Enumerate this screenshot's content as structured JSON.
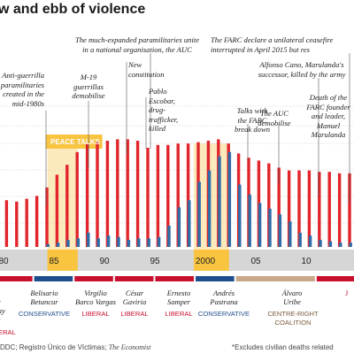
{
  "title": "w and ebb of violence",
  "colors": {
    "red": "#e1252b",
    "blue": "#2f6da8",
    "highlight": "#f9c440",
    "band": "#d6d6d6",
    "conservative": "#1f4e8c",
    "liberal": "#c8102e",
    "centre_right": "#c9a98a",
    "grid": "#c8c8c8"
  },
  "chart_data": {
    "type": "bar",
    "x_ticks": [
      "80",
      "85",
      "90",
      "95",
      "2000",
      "05",
      "10"
    ],
    "highlight_periods": [
      {
        "label": "PEACE TALKS",
        "from": 1984,
        "to": 1987
      },
      {
        "label": "",
        "from": 1998.5,
        "to": 2002
      }
    ],
    "series": [
      {
        "color": "red",
        "points": [
          [
            1978,
            3.4
          ],
          [
            1979,
            3.3
          ],
          [
            1980,
            3.3
          ],
          [
            1981,
            3.2
          ],
          [
            1982,
            3.4
          ],
          [
            1983,
            3.6
          ],
          [
            1984,
            4.2
          ],
          [
            1985,
            5.1
          ],
          [
            1986,
            5.8
          ],
          [
            1987,
            6.7
          ],
          [
            1988,
            7.3
          ],
          [
            1989,
            7.4
          ],
          [
            1990,
            7.5
          ],
          [
            1991,
            7.6
          ],
          [
            1992,
            7.6
          ],
          [
            1993,
            7.5
          ],
          [
            1994,
            7.0
          ],
          [
            1995,
            7.2
          ],
          [
            1996,
            7.2
          ],
          [
            1997,
            7.3
          ],
          [
            1998,
            7.3
          ],
          [
            1999,
            7.4
          ],
          [
            2000,
            7.5
          ],
          [
            2001,
            7.6
          ],
          [
            2002,
            7.3
          ],
          [
            2003,
            6.6
          ],
          [
            2004,
            6.3
          ],
          [
            2005,
            6.1
          ],
          [
            2006,
            5.9
          ],
          [
            2007,
            5.6
          ],
          [
            2008,
            5.4
          ],
          [
            2009,
            5.4
          ],
          [
            2010,
            5.4
          ],
          [
            2011,
            5.3
          ],
          [
            2012,
            5.3
          ],
          [
            2013,
            5.2
          ],
          [
            2014,
            5.2
          ]
        ]
      },
      {
        "color": "blue",
        "points": [
          [
            1984,
            0.2
          ],
          [
            1985,
            0.3
          ],
          [
            1986,
            0.5
          ],
          [
            1987,
            0.6
          ],
          [
            1988,
            1.0
          ],
          [
            1989,
            0.6
          ],
          [
            1990,
            0.8
          ],
          [
            1991,
            0.7
          ],
          [
            1992,
            0.5
          ],
          [
            1993,
            0.6
          ],
          [
            1994,
            0.6
          ],
          [
            1995,
            0.7
          ],
          [
            1996,
            1.5
          ],
          [
            1997,
            2.8
          ],
          [
            1998,
            3.3
          ],
          [
            1999,
            4.6
          ],
          [
            2000,
            5.4
          ],
          [
            2001,
            6.4
          ],
          [
            2002,
            6.7
          ],
          [
            2003,
            4.4
          ],
          [
            2004,
            3.7
          ],
          [
            2005,
            3.1
          ],
          [
            2006,
            2.7
          ],
          [
            2007,
            2.3
          ],
          [
            2008,
            1.8
          ],
          [
            2009,
            1.0
          ],
          [
            2010,
            0.8
          ],
          [
            2011,
            0.5
          ],
          [
            2012,
            0.4
          ],
          [
            2013,
            0.3
          ],
          [
            2014,
            0.3
          ]
        ]
      }
    ]
  },
  "annotations": [
    {
      "text": "Anti-guerrilla\nparamilitaries\ncreated in the\nmid-1980s",
      "align": "r"
    },
    {
      "text": "M-19\nguerrillas\ndemobilise",
      "align": "c"
    },
    {
      "text": "The much-expanded paramilitaries unite\nin a national organisation, the AUC",
      "align": "c"
    },
    {
      "text": "New\nconstitution",
      "align": "l"
    },
    {
      "text": "Pablo\nEscobar,\ndrug-\ntrafficker,\nkilled",
      "align": "l"
    },
    {
      "text": "Talks with\nthe FARC\nbreak down",
      "align": "c"
    },
    {
      "text": "The FARC declare a unilateral ceasefire\ninterrupted in April 2015 but res",
      "align": "l"
    },
    {
      "text": "Alfonso Cano, Marulanda's\nsuccessor, killed by the army",
      "align": "c"
    },
    {
      "text": "The AUC\ndemobilise",
      "align": "c"
    },
    {
      "text": "Death of the\nFARC founder\nand leader,\nManuel\nMarulanda",
      "align": "c"
    }
  ],
  "presidents": [
    {
      "name": "ulio\nésar\nurbay\nyala",
      "party": "",
      "party_color": "liberal"
    },
    {
      "name": "Belisario\nBetancur",
      "party": "CONSERVATIVE",
      "party_color": "conservative"
    },
    {
      "name": "Virgilio\nBarco Vargas",
      "party": "LIBERAL",
      "party_color": "liberal"
    },
    {
      "name": "César\nGaviria",
      "party": "LIBERAL",
      "party_color": "liberal"
    },
    {
      "name": "Ernesto\nSamper",
      "party": "LIBERAL",
      "party_color": "liberal"
    },
    {
      "name": "Andrés\nPastrana",
      "party": "CONSERVATIVE",
      "party_color": "conservative"
    },
    {
      "name": "Álvaro\nUribe",
      "party": "CENTRE-RIGHT\nCOALITION",
      "party_color": "centre_right"
    },
    {
      "name": "J",
      "party": "",
      "party_color": "liberal"
    }
  ],
  "extra_text": {
    "cut_liberal": "ERAL"
  },
  "footer": {
    "source_prefix": "DDC; Registro Único de Víctimas; ",
    "source_italic": "The Economist",
    "note": "*Excludes civilian deaths related"
  }
}
